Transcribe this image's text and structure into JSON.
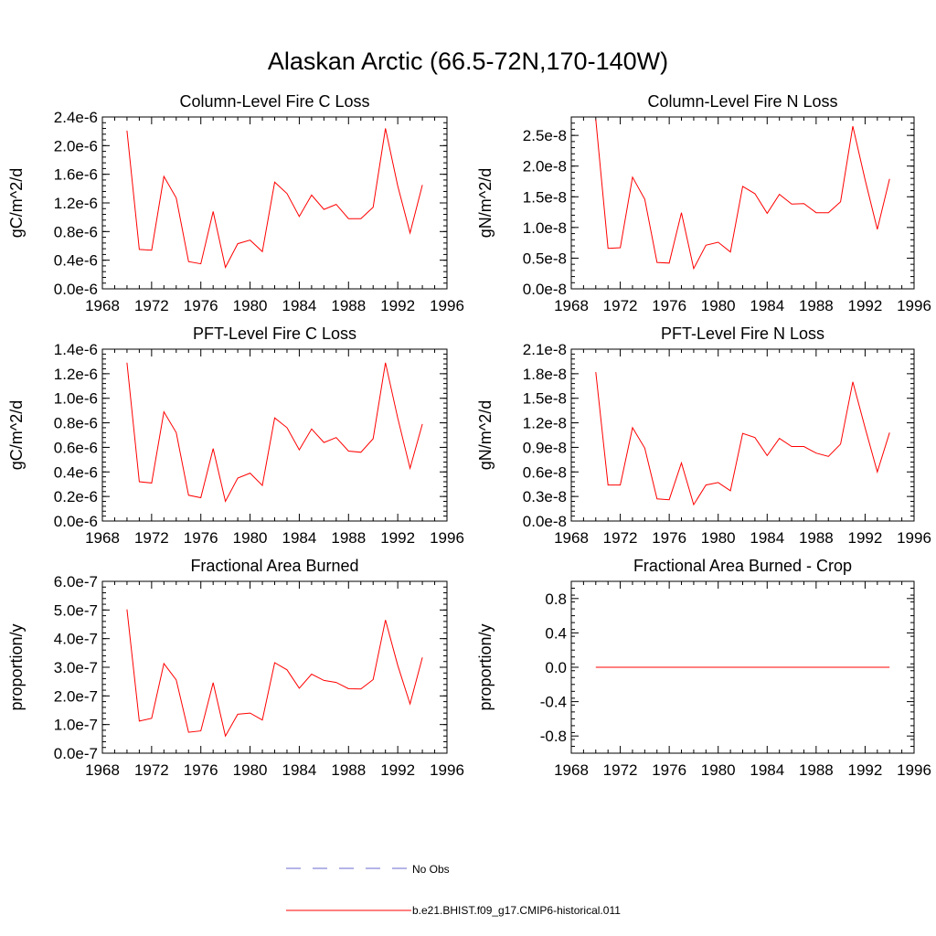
{
  "title": "Alaskan Arctic (66.5-72N,170-140W)",
  "legend": [
    {
      "label": "No Obs",
      "color": "#6a6ad0",
      "style": "dashed"
    },
    {
      "label": "b.e21.BHIST.f09_g17.CMIP6-historical.011",
      "color": "#ff0000",
      "style": "solid"
    }
  ],
  "chart_data": [
    {
      "type": "line",
      "title": "Column-Level Fire C Loss",
      "ylabel": "gC/m^2/d",
      "xlim": [
        1968,
        1996
      ],
      "ylim": [
        0,
        2.4e-06
      ],
      "xticks": [
        1968,
        1972,
        1976,
        1980,
        1984,
        1988,
        1992,
        1996
      ],
      "xticklabels": [
        "1968",
        "1972",
        "1976",
        "1980",
        "1984",
        "1988",
        "1992",
        "1996"
      ],
      "yticks": [
        0,
        4e-07,
        8e-07,
        1.2e-06,
        1.6e-06,
        2e-06,
        2.4e-06
      ],
      "yticklabels": [
        "0.0e-6",
        "0.4e-6",
        "0.8e-6",
        "1.2e-6",
        "1.6e-6",
        "2.0e-6",
        "2.4e-6"
      ],
      "x": [
        1970,
        1971,
        1972,
        1973,
        1974,
        1975,
        1976,
        1977,
        1978,
        1979,
        1980,
        1981,
        1982,
        1983,
        1984,
        1985,
        1986,
        1987,
        1988,
        1989,
        1990,
        1991,
        1992,
        1993,
        1994
      ],
      "series": [
        {
          "values": [
            2.21e-06,
            5.5e-07,
            5.4e-07,
            1.57e-06,
            1.27e-06,
            3.8e-07,
            3.5e-07,
            1.08e-06,
            3e-07,
            6.3e-07,
            6.8e-07,
            5.2e-07,
            1.49e-06,
            1.33e-06,
            1.01e-06,
            1.31e-06,
            1.11e-06,
            1.18e-06,
            9.8e-07,
            9.8e-07,
            1.14e-06,
            2.24e-06,
            1.44e-06,
            7.8e-07,
            1.45e-06
          ],
          "color": "#ff0000"
        }
      ]
    },
    {
      "type": "line",
      "title": "Column-Level Fire N Loss",
      "ylabel": "gN/m^2/d",
      "xlim": [
        1968,
        1996
      ],
      "ylim": [
        0,
        2.8e-08
      ],
      "xticks": [
        1968,
        1972,
        1976,
        1980,
        1984,
        1988,
        1992,
        1996
      ],
      "xticklabels": [
        "1968",
        "1972",
        "1976",
        "1980",
        "1984",
        "1988",
        "1992",
        "1996"
      ],
      "yticks": [
        0,
        5e-09,
        1e-08,
        1.5e-08,
        2e-08,
        2.5e-08
      ],
      "yticklabels": [
        "0.0e-8",
        "0.5e-8",
        "1.0e-8",
        "1.5e-8",
        "2.0e-8",
        "2.5e-8"
      ],
      "x": [
        1970,
        1971,
        1972,
        1973,
        1974,
        1975,
        1976,
        1977,
        1978,
        1979,
        1980,
        1981,
        1982,
        1983,
        1984,
        1985,
        1986,
        1987,
        1988,
        1989,
        1990,
        1991,
        1992,
        1993,
        1994
      ],
      "series": [
        {
          "values": [
            2.76e-08,
            6.6e-09,
            6.7e-09,
            1.82e-08,
            1.46e-08,
            4.3e-09,
            4.2e-09,
            1.24e-08,
            3.3e-09,
            7.1e-09,
            7.6e-09,
            6e-09,
            1.67e-08,
            1.55e-08,
            1.23e-08,
            1.54e-08,
            1.38e-08,
            1.39e-08,
            1.24e-08,
            1.24e-08,
            1.42e-08,
            2.65e-08,
            1.78e-08,
            9.7e-09,
            1.79e-08
          ],
          "color": "#ff0000"
        }
      ]
    },
    {
      "type": "line",
      "title": "PFT-Level Fire C Loss",
      "ylabel": "gC/m^2/d",
      "xlim": [
        1968,
        1996
      ],
      "ylim": [
        0,
        1.4e-06
      ],
      "xticks": [
        1968,
        1972,
        1976,
        1980,
        1984,
        1988,
        1992,
        1996
      ],
      "xticklabels": [
        "1968",
        "1972",
        "1976",
        "1980",
        "1984",
        "1988",
        "1992",
        "1996"
      ],
      "yticks": [
        0,
        2e-07,
        4e-07,
        6e-07,
        8e-07,
        1e-06,
        1.2e-06,
        1.4e-06
      ],
      "yticklabels": [
        "0.0e-6",
        "0.2e-6",
        "0.4e-6",
        "0.6e-6",
        "0.8e-6",
        "1.0e-6",
        "1.2e-6",
        "1.4e-6"
      ],
      "x": [
        1970,
        1971,
        1972,
        1973,
        1974,
        1975,
        1976,
        1977,
        1978,
        1979,
        1980,
        1981,
        1982,
        1983,
        1984,
        1985,
        1986,
        1987,
        1988,
        1989,
        1990,
        1991,
        1992,
        1993,
        1994
      ],
      "series": [
        {
          "values": [
            1.29e-06,
            3.2e-07,
            3.1e-07,
            8.9e-07,
            7.2e-07,
            2.1e-07,
            1.9e-07,
            5.9e-07,
            1.6e-07,
            3.5e-07,
            3.9e-07,
            2.9e-07,
            8.4e-07,
            7.6e-07,
            5.8e-07,
            7.5e-07,
            6.4e-07,
            6.8e-07,
            5.7e-07,
            5.6e-07,
            6.7e-07,
            1.29e-06,
            8.4e-07,
            4.3e-07,
            7.9e-07
          ],
          "color": "#ff0000"
        }
      ]
    },
    {
      "type": "line",
      "title": "PFT-Level Fire N Loss",
      "ylabel": "gN/m^2/d",
      "xlim": [
        1968,
        1996
      ],
      "ylim": [
        0,
        2.1e-08
      ],
      "xticks": [
        1968,
        1972,
        1976,
        1980,
        1984,
        1988,
        1992,
        1996
      ],
      "xticklabels": [
        "1968",
        "1972",
        "1976",
        "1980",
        "1984",
        "1988",
        "1992",
        "1996"
      ],
      "yticks": [
        0,
        3e-09,
        6e-09,
        9e-09,
        1.2e-08,
        1.5e-08,
        1.8e-08,
        2.1e-08
      ],
      "yticklabels": [
        "0.0e-8",
        "0.3e-8",
        "0.6e-8",
        "0.9e-8",
        "1.2e-8",
        "1.5e-8",
        "1.8e-8",
        "2.1e-8"
      ],
      "x": [
        1970,
        1971,
        1972,
        1973,
        1974,
        1975,
        1976,
        1977,
        1978,
        1979,
        1980,
        1981,
        1982,
        1983,
        1984,
        1985,
        1986,
        1987,
        1988,
        1989,
        1990,
        1991,
        1992,
        1993,
        1994
      ],
      "series": [
        {
          "values": [
            1.82e-08,
            4.4e-09,
            4.4e-09,
            1.14e-08,
            8.9e-09,
            2.7e-09,
            2.6e-09,
            7.1e-09,
            2e-09,
            4.4e-09,
            4.7e-09,
            3.7e-09,
            1.07e-08,
            1.02e-08,
            8e-09,
            1.01e-08,
            9.1e-09,
            9.1e-09,
            8.3e-09,
            7.9e-09,
            9.4e-09,
            1.7e-08,
            1.14e-08,
            6e-09,
            1.08e-08
          ],
          "color": "#ff0000"
        }
      ]
    },
    {
      "type": "line",
      "title": "Fractional Area Burned",
      "ylabel": "proportion/y",
      "xlim": [
        1968,
        1996
      ],
      "ylim": [
        0,
        6e-07
      ],
      "xticks": [
        1968,
        1972,
        1976,
        1980,
        1984,
        1988,
        1992,
        1996
      ],
      "xticklabels": [
        "1968",
        "1972",
        "1976",
        "1980",
        "1984",
        "1988",
        "1992",
        "1996"
      ],
      "yticks": [
        0,
        1e-07,
        2e-07,
        3e-07,
        4e-07,
        5e-07,
        6e-07
      ],
      "yticklabels": [
        "0.0e-7",
        "1.0e-7",
        "2.0e-7",
        "3.0e-7",
        "4.0e-7",
        "5.0e-7",
        "6.0e-7"
      ],
      "x": [
        1970,
        1971,
        1972,
        1973,
        1974,
        1975,
        1976,
        1977,
        1978,
        1979,
        1980,
        1981,
        1982,
        1983,
        1984,
        1985,
        1986,
        1987,
        1988,
        1989,
        1990,
        1991,
        1992,
        1993,
        1994
      ],
      "series": [
        {
          "values": [
            5.02e-07,
            1.12e-07,
            1.22e-07,
            3.13e-07,
            2.56e-07,
            7.3e-08,
            7.8e-08,
            2.46e-07,
            6e-08,
            1.36e-07,
            1.4e-07,
            1.16e-07,
            3.16e-07,
            2.91e-07,
            2.27e-07,
            2.76e-07,
            2.54e-07,
            2.47e-07,
            2.25e-07,
            2.24e-07,
            2.57e-07,
            4.65e-07,
            3.07e-07,
            1.72e-07,
            3.34e-07
          ],
          "color": "#ff0000"
        }
      ]
    },
    {
      "type": "line",
      "title": "Fractional Area Burned - Crop",
      "ylabel": "proportion/y",
      "xlim": [
        1968,
        1996
      ],
      "ylim": [
        -1.0,
        1.0
      ],
      "xticks": [
        1968,
        1972,
        1976,
        1980,
        1984,
        1988,
        1992,
        1996
      ],
      "xticklabels": [
        "1968",
        "1972",
        "1976",
        "1980",
        "1984",
        "1988",
        "1992",
        "1996"
      ],
      "yticks": [
        -0.8,
        -0.4,
        0.0,
        0.4,
        0.8
      ],
      "yticklabels": [
        "-0.8",
        "-0.4",
        "0.0",
        "0.4",
        "0.8"
      ],
      "x": [
        1970,
        1971,
        1972,
        1973,
        1974,
        1975,
        1976,
        1977,
        1978,
        1979,
        1980,
        1981,
        1982,
        1983,
        1984,
        1985,
        1986,
        1987,
        1988,
        1989,
        1990,
        1991,
        1992,
        1993,
        1994
      ],
      "series": [
        {
          "values": [
            0,
            0,
            0,
            0,
            0,
            0,
            0,
            0,
            0,
            0,
            0,
            0,
            0,
            0,
            0,
            0,
            0,
            0,
            0,
            0,
            0,
            0,
            0,
            0,
            0
          ],
          "color": "#ff0000"
        }
      ]
    }
  ]
}
